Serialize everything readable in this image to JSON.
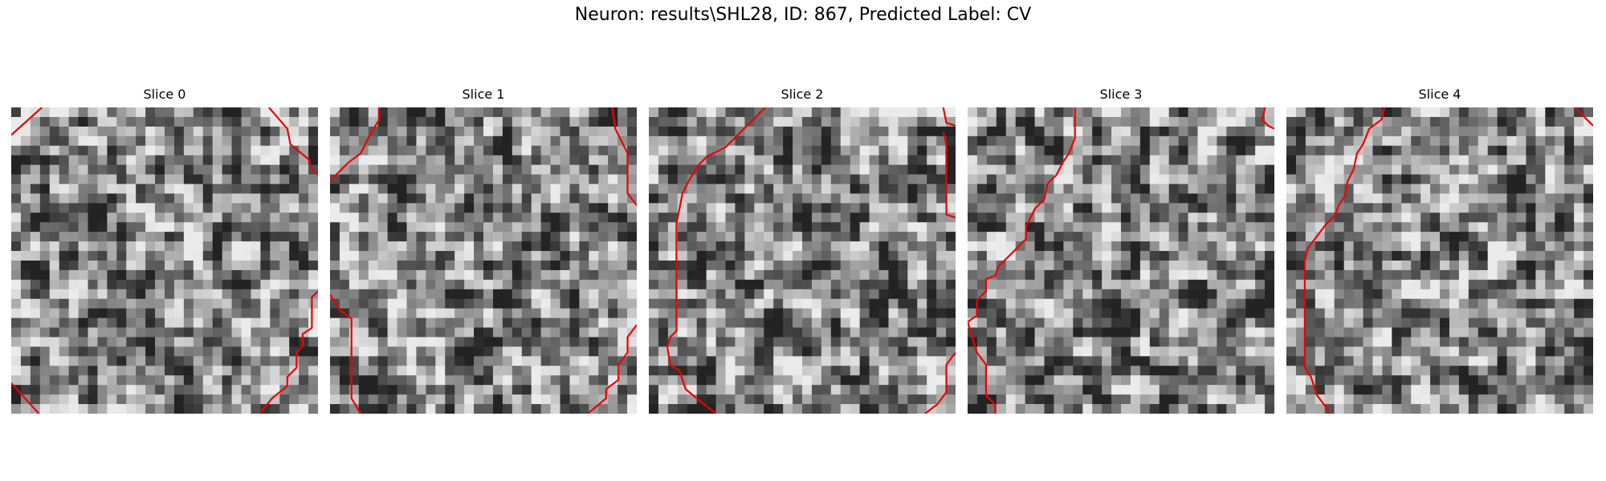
{
  "figure": {
    "title": "Neuron: results\\SHL28, ID: 867, Predicted Label: CV"
  },
  "panels": [
    {
      "title": "Slice 0",
      "seed": 11,
      "contours": [
        [
          [
            0.1,
            0.0
          ],
          [
            0.0,
            0.09
          ]
        ],
        [
          [
            0.84,
            0.0
          ],
          [
            0.9,
            0.07
          ],
          [
            0.91,
            0.12
          ],
          [
            0.97,
            0.17
          ],
          [
            0.98,
            0.2
          ],
          [
            1.0,
            0.22
          ]
        ],
        [
          [
            0.0,
            0.9
          ],
          [
            0.09,
            1.0
          ]
        ],
        [
          [
            1.0,
            0.6
          ],
          [
            0.98,
            0.62
          ],
          [
            0.98,
            0.72
          ],
          [
            0.95,
            0.74
          ],
          [
            0.95,
            0.78
          ],
          [
            0.93,
            0.8
          ],
          [
            0.93,
            0.85
          ],
          [
            0.9,
            0.88
          ],
          [
            0.9,
            0.91
          ],
          [
            0.85,
            0.95
          ],
          [
            0.81,
            1.0
          ]
        ]
      ]
    },
    {
      "title": "Slice 1",
      "seed": 23,
      "contours": [
        [
          [
            0.16,
            0.0
          ],
          [
            0.16,
            0.04
          ],
          [
            0.13,
            0.09
          ],
          [
            0.1,
            0.15
          ],
          [
            0.06,
            0.18
          ],
          [
            0.0,
            0.24
          ]
        ],
        [
          [
            0.92,
            0.0
          ],
          [
            0.93,
            0.07
          ],
          [
            0.95,
            0.11
          ],
          [
            0.97,
            0.15
          ],
          [
            0.97,
            0.28
          ],
          [
            1.0,
            0.32
          ]
        ],
        [
          [
            0.0,
            0.61
          ],
          [
            0.03,
            0.66
          ],
          [
            0.07,
            0.69
          ],
          [
            0.07,
            0.95
          ],
          [
            0.1,
            1.0
          ]
        ],
        [
          [
            1.0,
            0.71
          ],
          [
            0.97,
            0.75
          ],
          [
            0.97,
            0.8
          ],
          [
            0.94,
            0.84
          ],
          [
            0.94,
            0.89
          ],
          [
            0.9,
            0.92
          ],
          [
            0.9,
            0.95
          ],
          [
            0.84,
            1.0
          ]
        ]
      ]
    },
    {
      "title": "Slice 2",
      "seed": 37,
      "contours": [
        [
          [
            0.38,
            0.0
          ],
          [
            0.31,
            0.07
          ],
          [
            0.25,
            0.13
          ],
          [
            0.19,
            0.16
          ],
          [
            0.16,
            0.19
          ],
          [
            0.13,
            0.24
          ],
          [
            0.11,
            0.28
          ],
          [
            0.1,
            0.33
          ],
          [
            0.09,
            0.38
          ],
          [
            0.09,
            0.73
          ],
          [
            0.07,
            0.75
          ],
          [
            0.06,
            0.78
          ],
          [
            0.07,
            0.84
          ],
          [
            0.1,
            0.86
          ],
          [
            0.12,
            0.92
          ],
          [
            0.18,
            0.97
          ],
          [
            0.22,
            1.0
          ]
        ],
        [
          [
            0.96,
            0.0
          ],
          [
            0.97,
            0.05
          ],
          [
            1.0,
            0.06
          ]
        ],
        [
          [
            0.96,
            0.08
          ],
          [
            0.97,
            0.12
          ],
          [
            0.97,
            0.35
          ],
          [
            1.0,
            0.36
          ]
        ],
        [
          [
            1.0,
            0.8
          ],
          [
            0.97,
            0.84
          ],
          [
            0.97,
            0.93
          ],
          [
            0.94,
            0.97
          ],
          [
            0.9,
            1.0
          ]
        ]
      ]
    },
    {
      "title": "Slice 3",
      "seed": 51,
      "contours": [
        [
          [
            0.35,
            0.0
          ],
          [
            0.35,
            0.1
          ],
          [
            0.33,
            0.15
          ],
          [
            0.31,
            0.18
          ],
          [
            0.29,
            0.22
          ],
          [
            0.26,
            0.25
          ],
          [
            0.25,
            0.3
          ],
          [
            0.22,
            0.33
          ],
          [
            0.19,
            0.39
          ],
          [
            0.19,
            0.43
          ],
          [
            0.16,
            0.46
          ],
          [
            0.13,
            0.49
          ],
          [
            0.1,
            0.52
          ],
          [
            0.09,
            0.55
          ],
          [
            0.06,
            0.56
          ],
          [
            0.06,
            0.6
          ],
          [
            0.03,
            0.63
          ],
          [
            0.03,
            0.68
          ],
          [
            0.0,
            0.7
          ],
          [
            0.03,
            0.8
          ],
          [
            0.06,
            0.84
          ],
          [
            0.06,
            0.94
          ],
          [
            0.09,
            0.97
          ],
          [
            0.09,
            1.0
          ]
        ],
        [
          [
            0.97,
            0.0
          ],
          [
            0.96,
            0.04
          ],
          [
            0.98,
            0.06
          ],
          [
            1.0,
            0.07
          ]
        ]
      ]
    },
    {
      "title": "Slice 4",
      "seed": 67,
      "contours": [
        [
          [
            0.32,
            0.0
          ],
          [
            0.31,
            0.04
          ],
          [
            0.27,
            0.07
          ],
          [
            0.25,
            0.12
          ],
          [
            0.23,
            0.15
          ],
          [
            0.22,
            0.2
          ],
          [
            0.2,
            0.24
          ],
          [
            0.19,
            0.29
          ],
          [
            0.17,
            0.32
          ],
          [
            0.16,
            0.35
          ],
          [
            0.13,
            0.38
          ],
          [
            0.1,
            0.42
          ],
          [
            0.07,
            0.46
          ],
          [
            0.06,
            0.5
          ],
          [
            0.06,
            0.85
          ],
          [
            0.08,
            0.88
          ],
          [
            0.1,
            0.94
          ],
          [
            0.13,
            0.98
          ],
          [
            0.14,
            1.0
          ]
        ],
        [
          [
            0.94,
            0.0
          ],
          [
            0.98,
            0.04
          ],
          [
            1.0,
            0.06
          ]
        ]
      ]
    }
  ],
  "colors": {
    "contour": "#ee0000",
    "background": "#ffffff"
  }
}
